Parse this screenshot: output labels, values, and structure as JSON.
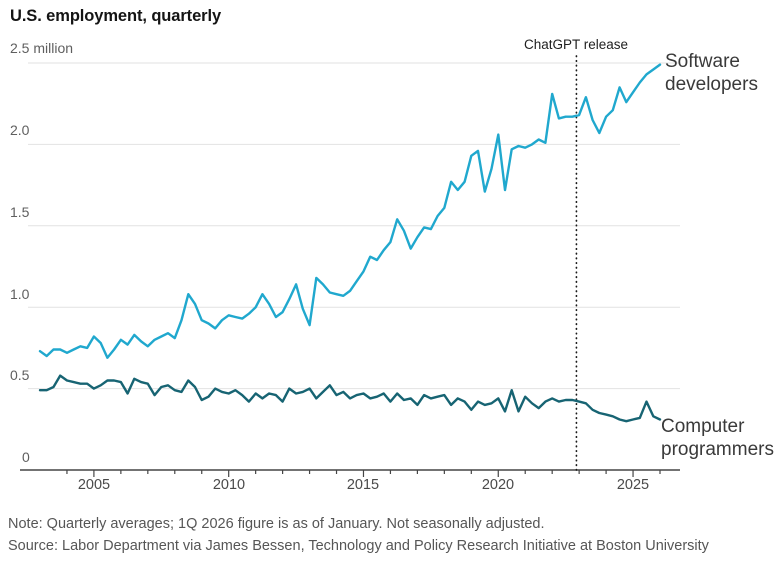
{
  "header": {
    "title": "U.S. employment, quarterly"
  },
  "notes": {
    "note": "Note: Quarterly averages; 1Q 2026 figure is as of January. Not seasonally adjusted.",
    "source": "Source: Labor Department via James Bessen, Technology and Policy Research Initiative at Boston University"
  },
  "chart_data": {
    "type": "line",
    "title": "U.S. employment, quarterly",
    "ylabel": "million",
    "ylim": [
      0,
      2.5
    ],
    "y_ticks": [
      0,
      0.5,
      1.0,
      1.5,
      2.0,
      2.5
    ],
    "y_tick_labels": [
      "0",
      "0.5",
      "1.0",
      "1.5",
      "2.0",
      "2.5 million"
    ],
    "x_start_year": 2003,
    "x_end_year": 2026,
    "points_per_year": 4,
    "x_tick_years": [
      2005,
      2010,
      2015,
      2020,
      2025
    ],
    "x_tick_labels": [
      "2005",
      "2010",
      "2015",
      "2020",
      "2025"
    ],
    "grid_color": "#e2e2e2",
    "axis_color": "#454545",
    "annotation": {
      "label": "ChatGPT release",
      "x_year": 2022.9,
      "color": "#1a1a1a"
    },
    "legend_position": "right-of-line-ends",
    "series": [
      {
        "name": "Software developers",
        "color": "#20a8ce",
        "values": [
          0.73,
          0.7,
          0.74,
          0.74,
          0.72,
          0.74,
          0.76,
          0.75,
          0.82,
          0.78,
          0.69,
          0.74,
          0.8,
          0.77,
          0.83,
          0.79,
          0.76,
          0.8,
          0.82,
          0.84,
          0.81,
          0.92,
          1.08,
          1.02,
          0.92,
          0.9,
          0.87,
          0.92,
          0.95,
          0.94,
          0.93,
          0.96,
          1.0,
          1.08,
          1.02,
          0.94,
          0.97,
          1.05,
          1.14,
          0.99,
          0.89,
          1.18,
          1.14,
          1.09,
          1.08,
          1.07,
          1.1,
          1.16,
          1.22,
          1.31,
          1.29,
          1.35,
          1.4,
          1.54,
          1.47,
          1.36,
          1.43,
          1.49,
          1.48,
          1.56,
          1.61,
          1.77,
          1.72,
          1.77,
          1.93,
          1.96,
          1.71,
          1.85,
          2.06,
          1.72,
          1.97,
          1.99,
          1.98,
          2.0,
          2.03,
          2.01,
          2.31,
          2.16,
          2.17,
          2.17,
          2.18,
          2.29,
          2.15,
          2.07,
          2.17,
          2.21,
          2.35,
          2.26,
          2.32,
          2.38,
          2.43,
          2.46,
          2.49
        ]
      },
      {
        "name": "Computer programmers",
        "color": "#176473",
        "values": [
          0.49,
          0.49,
          0.51,
          0.58,
          0.55,
          0.54,
          0.53,
          0.53,
          0.5,
          0.52,
          0.55,
          0.55,
          0.54,
          0.47,
          0.56,
          0.54,
          0.53,
          0.46,
          0.51,
          0.52,
          0.49,
          0.48,
          0.55,
          0.51,
          0.43,
          0.45,
          0.5,
          0.48,
          0.47,
          0.49,
          0.46,
          0.42,
          0.47,
          0.44,
          0.47,
          0.46,
          0.42,
          0.5,
          0.47,
          0.48,
          0.5,
          0.44,
          0.48,
          0.52,
          0.46,
          0.48,
          0.44,
          0.46,
          0.47,
          0.44,
          0.45,
          0.47,
          0.42,
          0.47,
          0.43,
          0.44,
          0.4,
          0.46,
          0.44,
          0.45,
          0.46,
          0.4,
          0.44,
          0.42,
          0.37,
          0.42,
          0.4,
          0.41,
          0.44,
          0.36,
          0.49,
          0.36,
          0.45,
          0.41,
          0.38,
          0.42,
          0.44,
          0.42,
          0.43,
          0.43,
          0.42,
          0.41,
          0.37,
          0.35,
          0.34,
          0.33,
          0.31,
          0.3,
          0.31,
          0.32,
          0.42,
          0.33,
          0.31
        ]
      }
    ]
  }
}
